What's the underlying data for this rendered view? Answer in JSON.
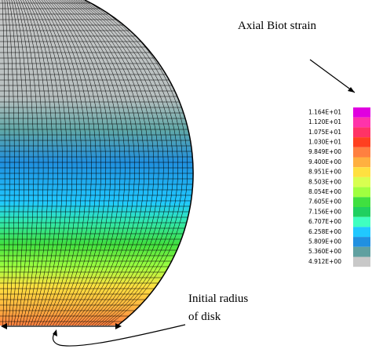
{
  "annotations": {
    "legend_title": "Axial Biot strain",
    "radius_line1": "Initial radius",
    "radius_line2": "of disk"
  },
  "legend": [
    {
      "label": "1.164E+01",
      "color": "#e000e0"
    },
    {
      "label": "1.120E+01",
      "color": "#ff33aa"
    },
    {
      "label": "1.075E+01",
      "color": "#ff3366"
    },
    {
      "label": "1.030E+01",
      "color": "#ff4020"
    },
    {
      "label": "9.849E+00",
      "color": "#ff8040"
    },
    {
      "label": "9.400E+00",
      "color": "#ffb040"
    },
    {
      "label": "8.951E+00",
      "color": "#ffe040"
    },
    {
      "label": "8.503E+00",
      "color": "#d8ff50"
    },
    {
      "label": "8.054E+00",
      "color": "#a0ff40"
    },
    {
      "label": "7.605E+00",
      "color": "#40e040"
    },
    {
      "label": "7.156E+00",
      "color": "#20d060"
    },
    {
      "label": "6.707E+00",
      "color": "#40ffc0"
    },
    {
      "label": "6.258E+00",
      "color": "#20c8ff"
    },
    {
      "label": "5.809E+00",
      "color": "#2090e0"
    },
    {
      "label": "5.360E+00",
      "color": "#60a0a0"
    },
    {
      "label": "4.912E+00",
      "color": "#c8c8c8"
    }
  ]
}
